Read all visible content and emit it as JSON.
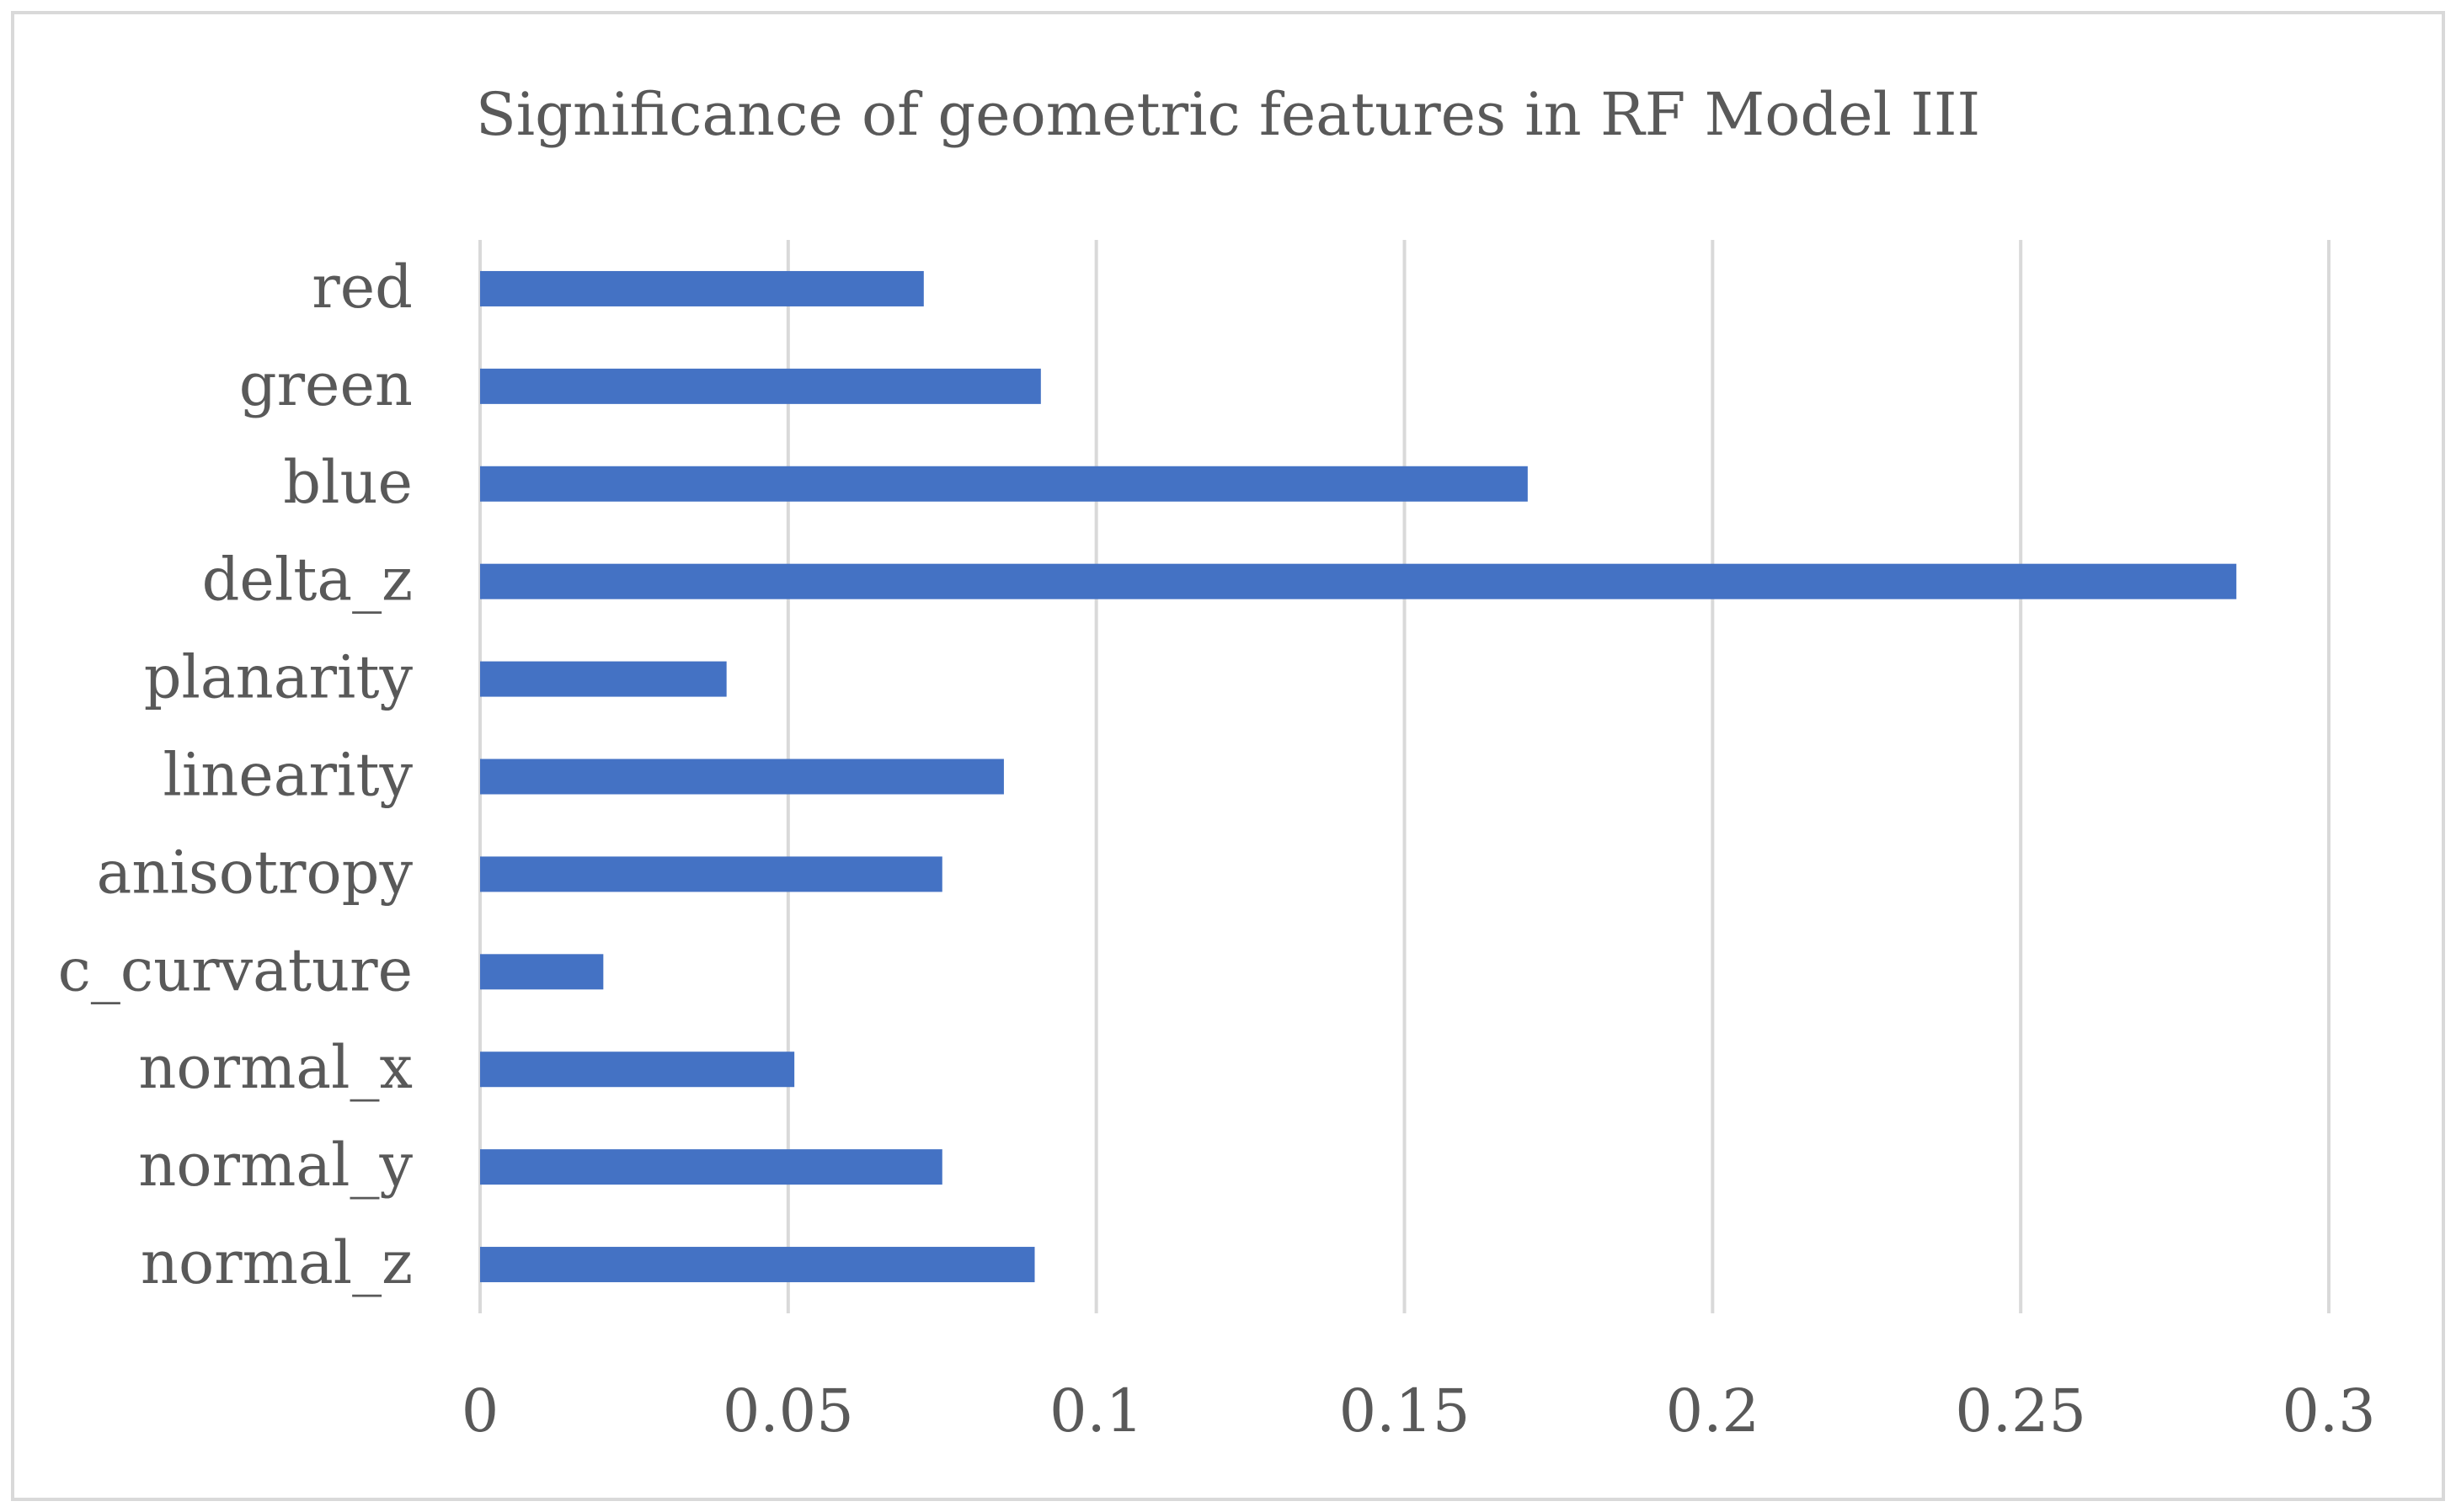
{
  "chart_data": {
    "type": "bar",
    "orientation": "horizontal",
    "title": "Significance of geometric features in RF Model III",
    "categories": [
      "red",
      "green",
      "blue",
      "delta_z",
      "planarity",
      "linearity",
      "anisotropy",
      "c_curvature",
      "normal_x",
      "normal_y",
      "normal_z"
    ],
    "values": [
      0.072,
      0.091,
      0.17,
      0.285,
      0.04,
      0.085,
      0.075,
      0.02,
      0.051,
      0.075,
      0.09
    ],
    "xlabel": "",
    "ylabel": "",
    "xlim": [
      0,
      0.3
    ],
    "x_ticks": [
      "0",
      "0.05",
      "0.1",
      "0.15",
      "0.2",
      "0.25",
      "0.3"
    ],
    "grid": true,
    "legend": "none",
    "bar_color": "#4472C4",
    "grid_color": "#D9D9D9",
    "border_color": "#D9D9D9",
    "text_color": "#595959"
  }
}
